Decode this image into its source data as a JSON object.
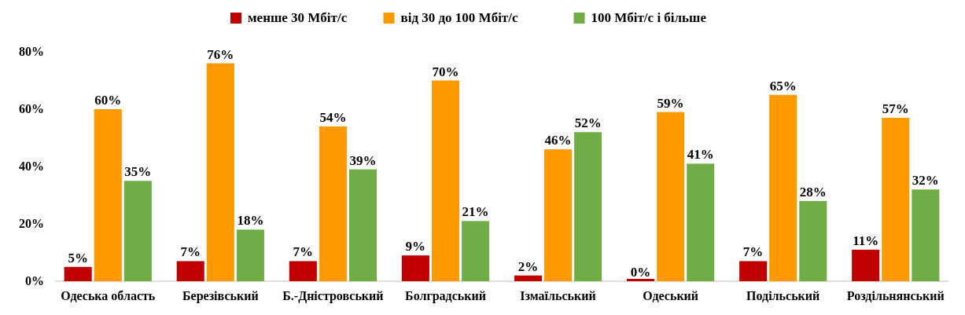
{
  "chart_data": {
    "type": "bar",
    "categories": [
      "Одеська область",
      "Березівський",
      "Б.-Дністровський",
      "Болградський",
      "Ізмаїльський",
      "Одеський",
      "Подільський",
      "Роздільнянський"
    ],
    "series": [
      {
        "name": "менше 30 Мбіт/с",
        "color": "#c00000",
        "values": [
          5,
          7,
          7,
          9,
          2,
          0,
          7,
          11
        ],
        "value_labels": [
          "5%",
          "7%",
          "7%",
          "9%",
          "2%",
          "0%",
          "7%",
          "11%"
        ]
      },
      {
        "name": "від 30 до 100 Мбіт/с",
        "color": "#ff9900",
        "values": [
          60,
          76,
          54,
          70,
          46,
          59,
          65,
          57
        ],
        "value_labels": [
          "60%",
          "76%",
          "54%",
          "70%",
          "46%",
          "59%",
          "65%",
          "57%"
        ]
      },
      {
        "name": "100 Мбіт/с і більше",
        "color": "#70ad47",
        "values": [
          35,
          18,
          39,
          21,
          52,
          41,
          28,
          32
        ],
        "value_labels": [
          "35%",
          "18%",
          "39%",
          "21%",
          "52%",
          "41%",
          "28%",
          "32%"
        ]
      }
    ],
    "ylim": [
      0,
      80
    ],
    "yticks": [
      {
        "value": 0,
        "label": "0%"
      },
      {
        "value": 20,
        "label": "20%"
      },
      {
        "value": 40,
        "label": "40%"
      },
      {
        "value": 60,
        "label": "60%"
      },
      {
        "value": 80,
        "label": "80%"
      }
    ],
    "legend": "top"
  }
}
